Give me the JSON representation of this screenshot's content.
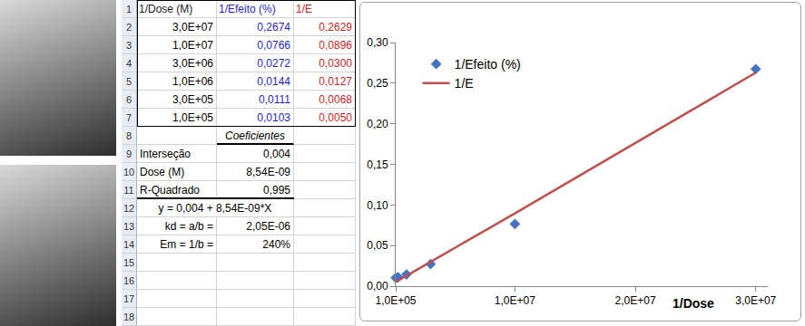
{
  "spreadsheet": {
    "rows": [
      {
        "n": 1,
        "A": "1/Dose (M)",
        "B": "1/Efeito (%)",
        "C": "1/E"
      },
      {
        "n": 2,
        "A": "3,0E+07",
        "B": "0,2674",
        "C": "0,2629"
      },
      {
        "n": 3,
        "A": "1,0E+07",
        "B": "0,0766",
        "C": "0,0896"
      },
      {
        "n": 4,
        "A": "3,0E+06",
        "B": "0,0272",
        "C": "0,0300"
      },
      {
        "n": 5,
        "A": "1,0E+06",
        "B": "0,0144",
        "C": "0,0127"
      },
      {
        "n": 6,
        "A": "3,0E+05",
        "B": "0,0111",
        "C": "0,0068"
      },
      {
        "n": 7,
        "A": "1,0E+05",
        "B": "0,0103",
        "C": "0,0050"
      },
      {
        "n": 8,
        "B": "Coeficientes"
      },
      {
        "n": 9,
        "A": "Interseção",
        "B": "0,004"
      },
      {
        "n": 10,
        "A": "Dose (M)",
        "B": "8,54E-09"
      },
      {
        "n": 11,
        "A": "R-Quadrado",
        "B": "0,995"
      },
      {
        "n": 12,
        "A": "y = 0,004 + 8,54E-09*X"
      },
      {
        "n": 13,
        "A": "kd = a/b =",
        "B": "2,05E-06"
      },
      {
        "n": 14,
        "A": "Em = 1/b =",
        "B": "240%"
      },
      {
        "n": 15
      },
      {
        "n": 16
      },
      {
        "n": 17
      },
      {
        "n": 18
      }
    ]
  },
  "chart_data": {
    "type": "scatter",
    "x": [
      30000000,
      10000000,
      3000000,
      1000000,
      300000,
      100000
    ],
    "series": [
      {
        "name": "1/Efeito (%)",
        "type": "scatter",
        "color": "#4472C4",
        "marker": "diamond",
        "values": [
          0.2674,
          0.0766,
          0.0272,
          0.0144,
          0.0111,
          0.0103
        ]
      },
      {
        "name": "1/E",
        "type": "line",
        "color": "#C0504D",
        "line_style": "solid",
        "values": [
          0.2629,
          0.0896,
          0.03,
          0.0127,
          0.0068,
          0.005
        ]
      }
    ],
    "xlabel": "1/Dose",
    "xlim": [
      100000,
      31000000
    ],
    "xticks": [
      {
        "value": 100000,
        "label": "1,0E+05"
      },
      {
        "value": 10000000,
        "label": "1,0E+07"
      },
      {
        "value": 20000000,
        "label": "2,0E+07"
      },
      {
        "value": 30000000,
        "label": "3,0E+07"
      }
    ],
    "ylim": [
      0,
      0.3
    ],
    "yticks": [
      {
        "value": 0,
        "label": "0,00"
      },
      {
        "value": 0.05,
        "label": "0,05"
      },
      {
        "value": 0.1,
        "label": "0,10"
      },
      {
        "value": 0.15,
        "label": "0,15"
      },
      {
        "value": 0.2,
        "label": "0,20"
      },
      {
        "value": 0.25,
        "label": "0,25"
      },
      {
        "value": 0.3,
        "label": "0,30"
      }
    ],
    "grid": false,
    "legend": "upper left"
  }
}
